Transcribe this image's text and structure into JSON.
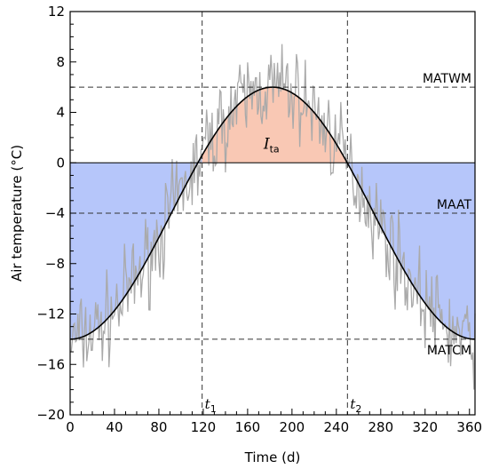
{
  "chart_data": {
    "type": "line",
    "xlabel": "Time (d)",
    "ylabel": "Air temperature (°C)",
    "xlim": [
      0,
      365
    ],
    "ylim": [
      -20,
      12
    ],
    "xticks": [
      0,
      40,
      80,
      120,
      160,
      200,
      240,
      280,
      320,
      360
    ],
    "yticks": [
      -20,
      -16,
      -12,
      -8,
      -4,
      0,
      4,
      8,
      12
    ],
    "ytick_labels": [
      "−20",
      "−16",
      "−12",
      "−8",
      "−4",
      "0",
      "4",
      "8",
      "12"
    ],
    "grid": false,
    "model": {
      "name": "sinusoidal fit",
      "min_day": 0,
      "max_day": 182.5,
      "max_temp": 6,
      "min_temp": -14,
      "color": "#000000"
    },
    "reference_lines": [
      {
        "label": "MATWM",
        "y": 6
      },
      {
        "label": "MAAT",
        "y": -4
      },
      {
        "label": "MATCM",
        "y": -14
      }
    ],
    "zero_line": 0,
    "thaw_days": {
      "t1": {
        "label": "t",
        "sub": "1",
        "x": 119
      },
      "t2": {
        "label": "t",
        "sub": "2",
        "x": 250
      }
    },
    "regions": {
      "thaw": {
        "label": "I",
        "sub": "ta",
        "color": "#f9c8b4"
      },
      "freeze": {
        "color": "#b6c6fa"
      }
    },
    "daily_series": {
      "name": "daily air temperature",
      "color": "#aaaaaa",
      "days": 365,
      "noise_amplitude": 3.2,
      "seed": 7
    }
  }
}
